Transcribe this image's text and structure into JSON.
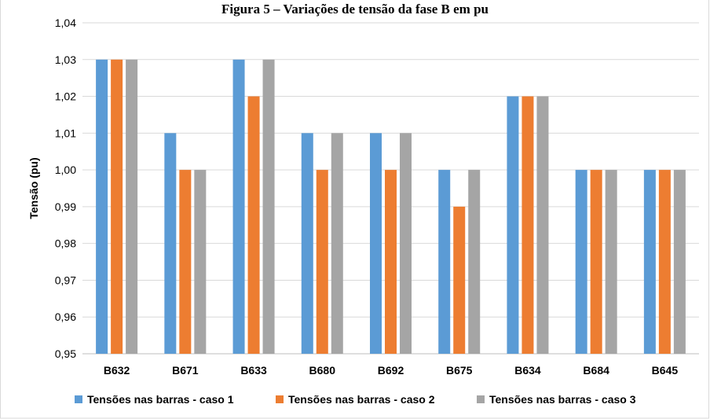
{
  "chart_data": {
    "type": "bar",
    "title": "Figura 5 – Variações de tensão da fase B em pu",
    "ylabel": "Tensão (pu)",
    "xlabel": "",
    "categories": [
      "B632",
      "B671",
      "B633",
      "B680",
      "B692",
      "B675",
      "B634",
      "B684",
      "B645"
    ],
    "ylim": [
      0.95,
      1.04
    ],
    "yticks": [
      "0,95",
      "0,96",
      "0,97",
      "0,98",
      "0,99",
      "1,00",
      "1,01",
      "1,02",
      "1,03",
      "1,04"
    ],
    "grid": true,
    "legend_position": "bottom",
    "series": [
      {
        "name": "Tensões nas barras - caso 1",
        "color": "#5B9BD5",
        "values": [
          1.03,
          1.01,
          1.03,
          1.01,
          1.01,
          1.0,
          1.02,
          1.0,
          1.0
        ]
      },
      {
        "name": "Tensões nas barras - caso 2",
        "color": "#ED7D31",
        "values": [
          1.03,
          1.0,
          1.02,
          1.0,
          1.0,
          0.99,
          1.02,
          1.0,
          1.0
        ]
      },
      {
        "name": "Tensões nas barras - caso 3",
        "color": "#A5A5A5",
        "values": [
          1.03,
          1.0,
          1.03,
          1.01,
          1.01,
          1.0,
          1.02,
          1.0,
          1.0
        ]
      }
    ]
  }
}
